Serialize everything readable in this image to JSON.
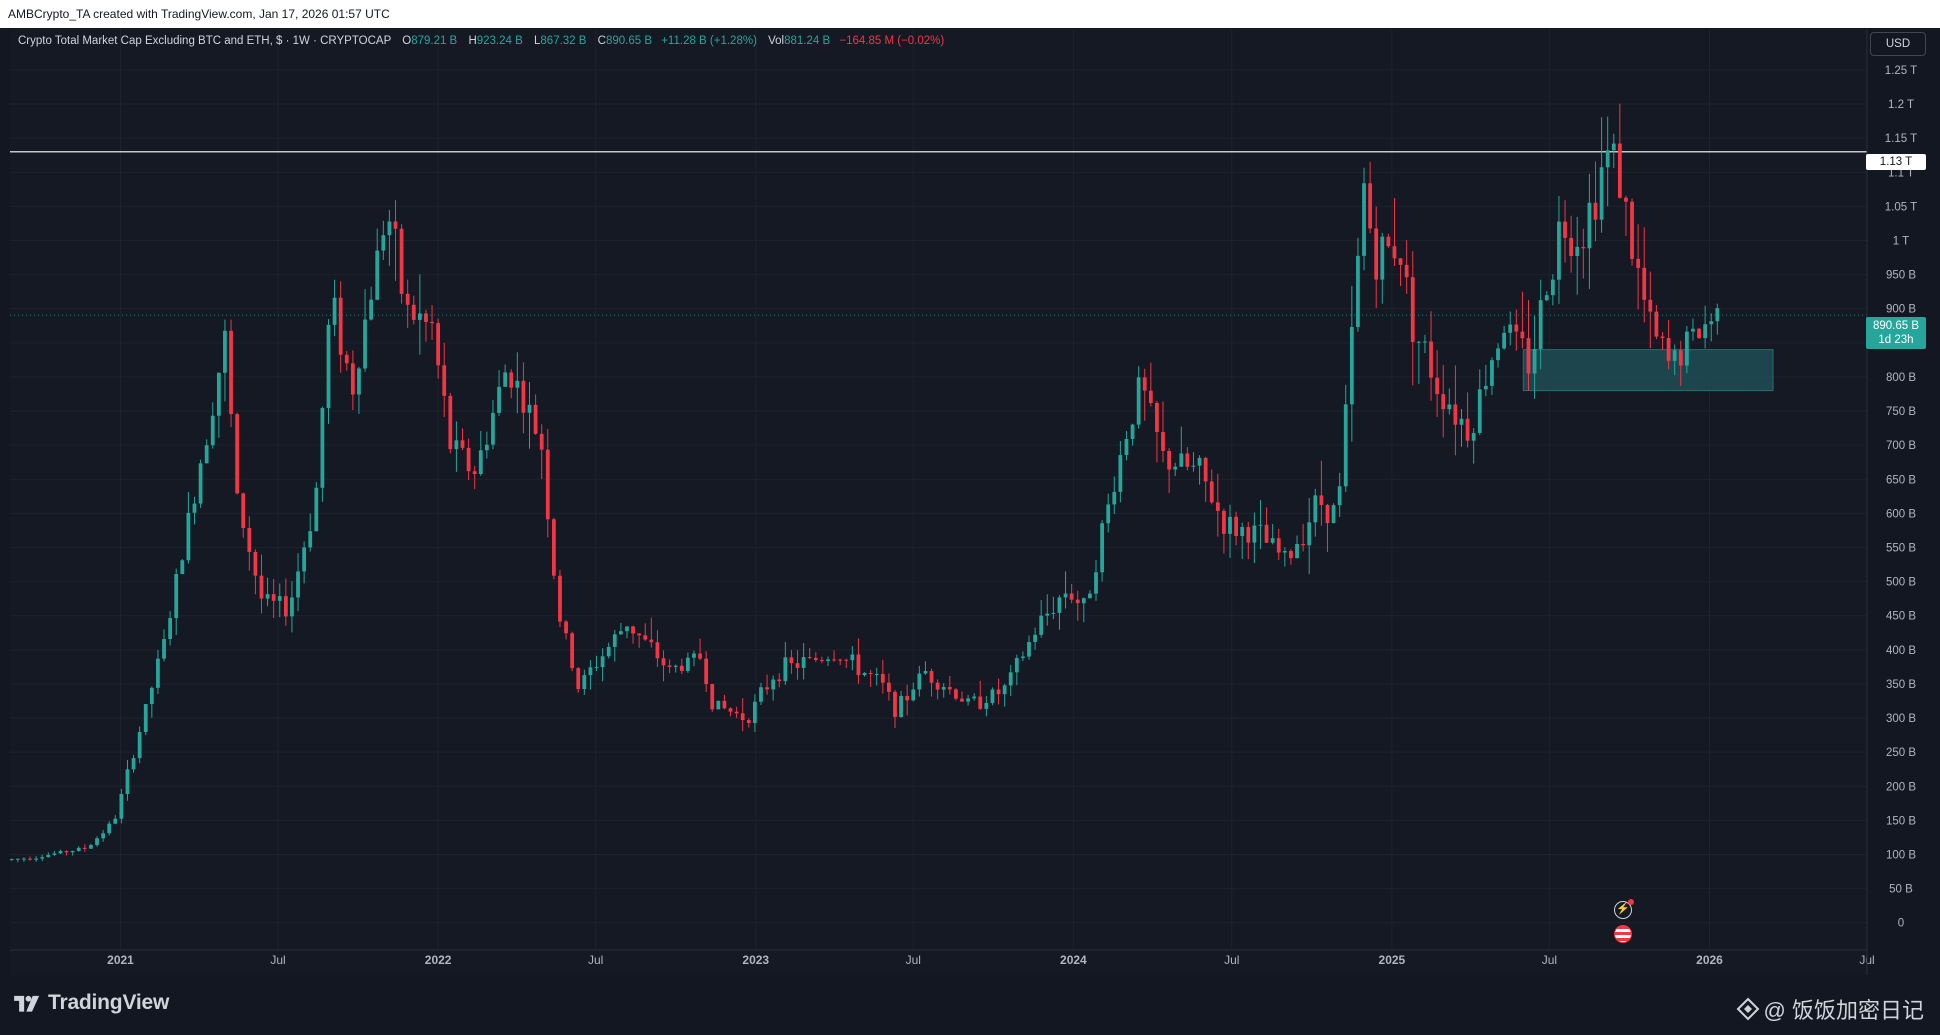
{
  "credit": "AMBCrypto_TA created with TradingView.com, Jan 17, 2026 01:57 UTC",
  "legend": {
    "title": "Crypto Total Market Cap Excluding BTC and ETH, $ · 1W · CRYPTOCAP",
    "o_label": "O",
    "o_value": "879.21 B",
    "h_label": "H",
    "h_value": "923.24 B",
    "l_label": "L",
    "l_value": "867.32 B",
    "c_label": "C",
    "c_value": "890.65 B",
    "change": "+11.28 B (+1.28%)",
    "vol_label": "Vol",
    "vol_value": "881.24 B",
    "vol_change": "−164.85 M (−0.02%)"
  },
  "currency_button": "USD",
  "price_tag": {
    "value": "890.65 B",
    "countdown": "1d 23h"
  },
  "level_tag": "1.13 T",
  "footer": {
    "brand": "TradingView",
    "watermark": "@ 饭饭加密日记"
  },
  "colors": {
    "up": "#26a69a",
    "down": "#f23645",
    "background": "#131722",
    "zone": "#1e4e55",
    "level": "#ffffff"
  },
  "chart_data": {
    "type": "candlestick",
    "title": "Crypto Total Market Cap Excluding BTC and ETH",
    "interval": "1W",
    "yunit": "USD",
    "ylim": [
      -40,
      1310
    ],
    "xlim": [
      "2020-08-27",
      "2026-07-01"
    ],
    "y_ticks": [
      "0",
      "50 B",
      "100 B",
      "150 B",
      "200 B",
      "250 B",
      "300 B",
      "350 B",
      "400 B",
      "450 B",
      "500 B",
      "550 B",
      "600 B",
      "650 B",
      "700 B",
      "750 B",
      "800 B",
      "850 B",
      "900 B",
      "950 B",
      "1 T",
      "1.05 T",
      "1.1 T",
      "1.15 T",
      "1.2 T",
      "1.25 T"
    ],
    "y_tick_values": [
      0,
      50,
      100,
      150,
      200,
      250,
      300,
      350,
      400,
      450,
      500,
      550,
      600,
      650,
      700,
      750,
      800,
      850,
      900,
      950,
      1000,
      1050,
      1100,
      1150,
      1200,
      1250
    ],
    "x_ticks": [
      "2021",
      "Jul",
      "2022",
      "Jul",
      "2023",
      "Jul",
      "2024",
      "Jul",
      "2025",
      "Jul",
      "2026",
      "Jul"
    ],
    "x_tick_dates": [
      "2021-01-01",
      "2021-07-01",
      "2022-01-01",
      "2022-07-01",
      "2023-01-01",
      "2023-07-01",
      "2024-01-01",
      "2024-07-01",
      "2025-01-01",
      "2025-07-01",
      "2026-01-01",
      "2026-07-01"
    ],
    "grid": true,
    "horizontal_level": 1130,
    "support_zone": {
      "from": "2025-06-01",
      "to": "2026-03-15",
      "low": 780,
      "high": 840
    },
    "last_price": 890.65,
    "anchors": [
      [
        "2020-08-29",
        92
      ],
      [
        "2020-10-01",
        96
      ],
      [
        "2020-12-01",
        110
      ],
      [
        "2021-01-01",
        150
      ],
      [
        "2021-02-01",
        290
      ],
      [
        "2021-03-01",
        420
      ],
      [
        "2021-04-01",
        620
      ],
      [
        "2021-05-08",
        855
      ],
      [
        "2021-05-22",
        620
      ],
      [
        "2021-06-20",
        470
      ],
      [
        "2021-07-20",
        460
      ],
      [
        "2021-08-20",
        620
      ],
      [
        "2021-09-07",
        920
      ],
      [
        "2021-10-01",
        780
      ],
      [
        "2021-11-10",
        1050
      ],
      [
        "2021-12-01",
        900
      ],
      [
        "2022-01-01",
        870
      ],
      [
        "2022-01-22",
        700
      ],
      [
        "2022-02-20",
        660
      ],
      [
        "2022-03-29",
        820
      ],
      [
        "2022-05-07",
        700
      ],
      [
        "2022-05-25",
        460
      ],
      [
        "2022-06-18",
        345
      ],
      [
        "2022-08-13",
        440
      ],
      [
        "2022-10-01",
        370
      ],
      [
        "2022-11-05",
        390
      ],
      [
        "2022-11-20",
        320
      ],
      [
        "2022-12-29",
        300
      ],
      [
        "2023-02-01",
        370
      ],
      [
        "2023-04-10",
        395
      ],
      [
        "2023-06-01",
        350
      ],
      [
        "2023-06-20",
        310
      ],
      [
        "2023-07-20",
        370
      ],
      [
        "2023-09-11",
        320
      ],
      [
        "2023-10-20",
        340
      ],
      [
        "2023-12-01",
        440
      ],
      [
        "2024-01-01",
        490
      ],
      [
        "2024-01-20",
        460
      ],
      [
        "2024-03-05",
        700
      ],
      [
        "2024-03-25",
        790
      ],
      [
        "2024-04-20",
        680
      ],
      [
        "2024-06-01",
        660
      ],
      [
        "2024-07-01",
        580
      ],
      [
        "2024-08-05",
        570
      ],
      [
        "2024-09-10",
        530
      ],
      [
        "2024-10-15",
        620
      ],
      [
        "2024-11-07",
        600
      ],
      [
        "2024-11-22",
        840
      ],
      [
        "2024-12-07",
        1080
      ],
      [
        "2024-12-20",
        970
      ],
      [
        "2025-01-15",
        1000
      ],
      [
        "2025-02-03",
        870
      ],
      [
        "2025-03-01",
        790
      ],
      [
        "2025-04-07",
        720
      ],
      [
        "2025-05-15",
        880
      ],
      [
        "2025-06-15",
        820
      ],
      [
        "2025-07-20",
        1020
      ],
      [
        "2025-08-15",
        1010
      ],
      [
        "2025-09-10",
        1120
      ],
      [
        "2025-09-22",
        1130
      ],
      [
        "2025-10-10",
        990
      ],
      [
        "2025-11-01",
        870
      ],
      [
        "2025-11-22",
        820
      ],
      [
        "2025-12-15",
        850
      ],
      [
        "2026-01-14",
        890.65
      ]
    ]
  }
}
